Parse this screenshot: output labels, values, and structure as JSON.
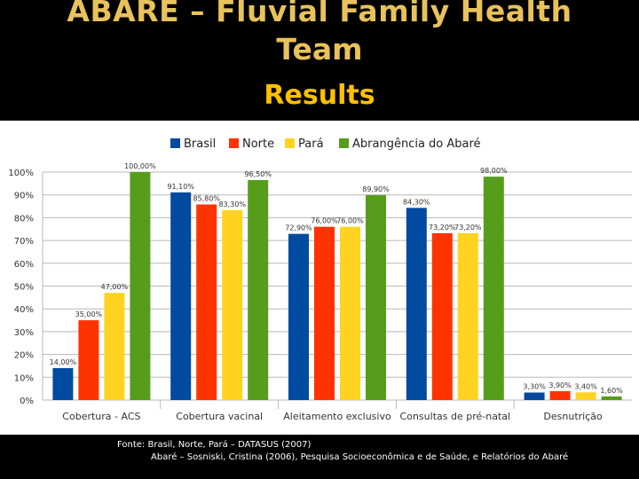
{
  "slide": {
    "title_line1": "ABARÉ – Fluvial Family Health",
    "title_line2": "Team",
    "title_line3": "Results",
    "footer_line1": "Fonte:  Brasil, Norte, Pará – DATASUS (2007)",
    "footer_line2": "Abaré – Sosniski, Cristina (2006), Pesquisa Socioeconômica e de Saúde, e Relatórios do Abaré"
  },
  "chart_data": {
    "type": "bar",
    "categories": [
      "Cobertura - ACS",
      "Cobertura vacinal",
      "Aleitamento exclusivo",
      "Consultas de pré-natal",
      "Desnutrição"
    ],
    "series": [
      {
        "name": "Brasil",
        "color": "#004a9f",
        "values": [
          14.0,
          91.1,
          72.9,
          84.3,
          3.3
        ],
        "labels": [
          "14,00%",
          "91,10%",
          "72,90%",
          "84,30%",
          "3,30%"
        ]
      },
      {
        "name": "Norte",
        "color": "#ff3300",
        "values": [
          35.0,
          85.8,
          76.0,
          73.2,
          3.9
        ],
        "labels": [
          "35,00%",
          "85,80%",
          "76,00%",
          "73,20%",
          "3,90%"
        ]
      },
      {
        "name": "Pará",
        "color": "#ffd320",
        "values": [
          47.0,
          83.3,
          76.0,
          73.2,
          3.4
        ],
        "labels": [
          "47,00%",
          "83,30%",
          "76,00%",
          "73,20%",
          "3,40%"
        ]
      },
      {
        "name": "Abrangência do Abaré",
        "color": "#579d1c",
        "values": [
          100.0,
          96.5,
          89.9,
          98.0,
          1.6
        ],
        "labels": [
          "100,00%",
          "96,50%",
          "89,90%",
          "98,00%",
          "1,60%"
        ]
      }
    ],
    "y_ticks": [
      "0%",
      "10%",
      "20%",
      "30%",
      "40%",
      "50%",
      "60%",
      "70%",
      "80%",
      "90%",
      "100%"
    ],
    "ylim": [
      0,
      100
    ],
    "grid": true,
    "legend_position": "top"
  }
}
